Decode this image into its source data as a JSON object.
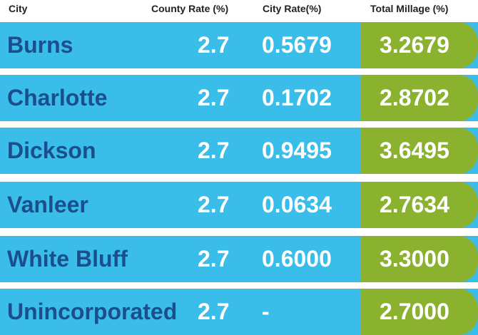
{
  "header": {
    "city": "City",
    "county_rate": "County Rate (%)",
    "city_rate": "City Rate(%)",
    "total_millage": "Total Millage (%)"
  },
  "rows": [
    {
      "city": "Burns",
      "county_rate": "2.7",
      "city_rate": "0.5679",
      "total": "3.2679"
    },
    {
      "city": "Charlotte",
      "county_rate": "2.7",
      "city_rate": "0.1702",
      "total": "2.8702"
    },
    {
      "city": "Dickson",
      "county_rate": "2.7",
      "city_rate": "0.9495",
      "total": "3.6495"
    },
    {
      "city": "Vanleer",
      "county_rate": "2.7",
      "city_rate": "0.0634",
      "total": "2.7634"
    },
    {
      "city": "White Bluff",
      "county_rate": "2.7",
      "city_rate": "0.6000",
      "total": "3.3000"
    },
    {
      "city": "Unincorporated",
      "county_rate": "2.7",
      "city_rate": "-",
      "total": "2.7000"
    }
  ],
  "colors": {
    "row_blue": "#3bbde9",
    "total_green": "#8bb22e",
    "city_text": "#1b4e8c",
    "value_text": "#ffffff"
  }
}
